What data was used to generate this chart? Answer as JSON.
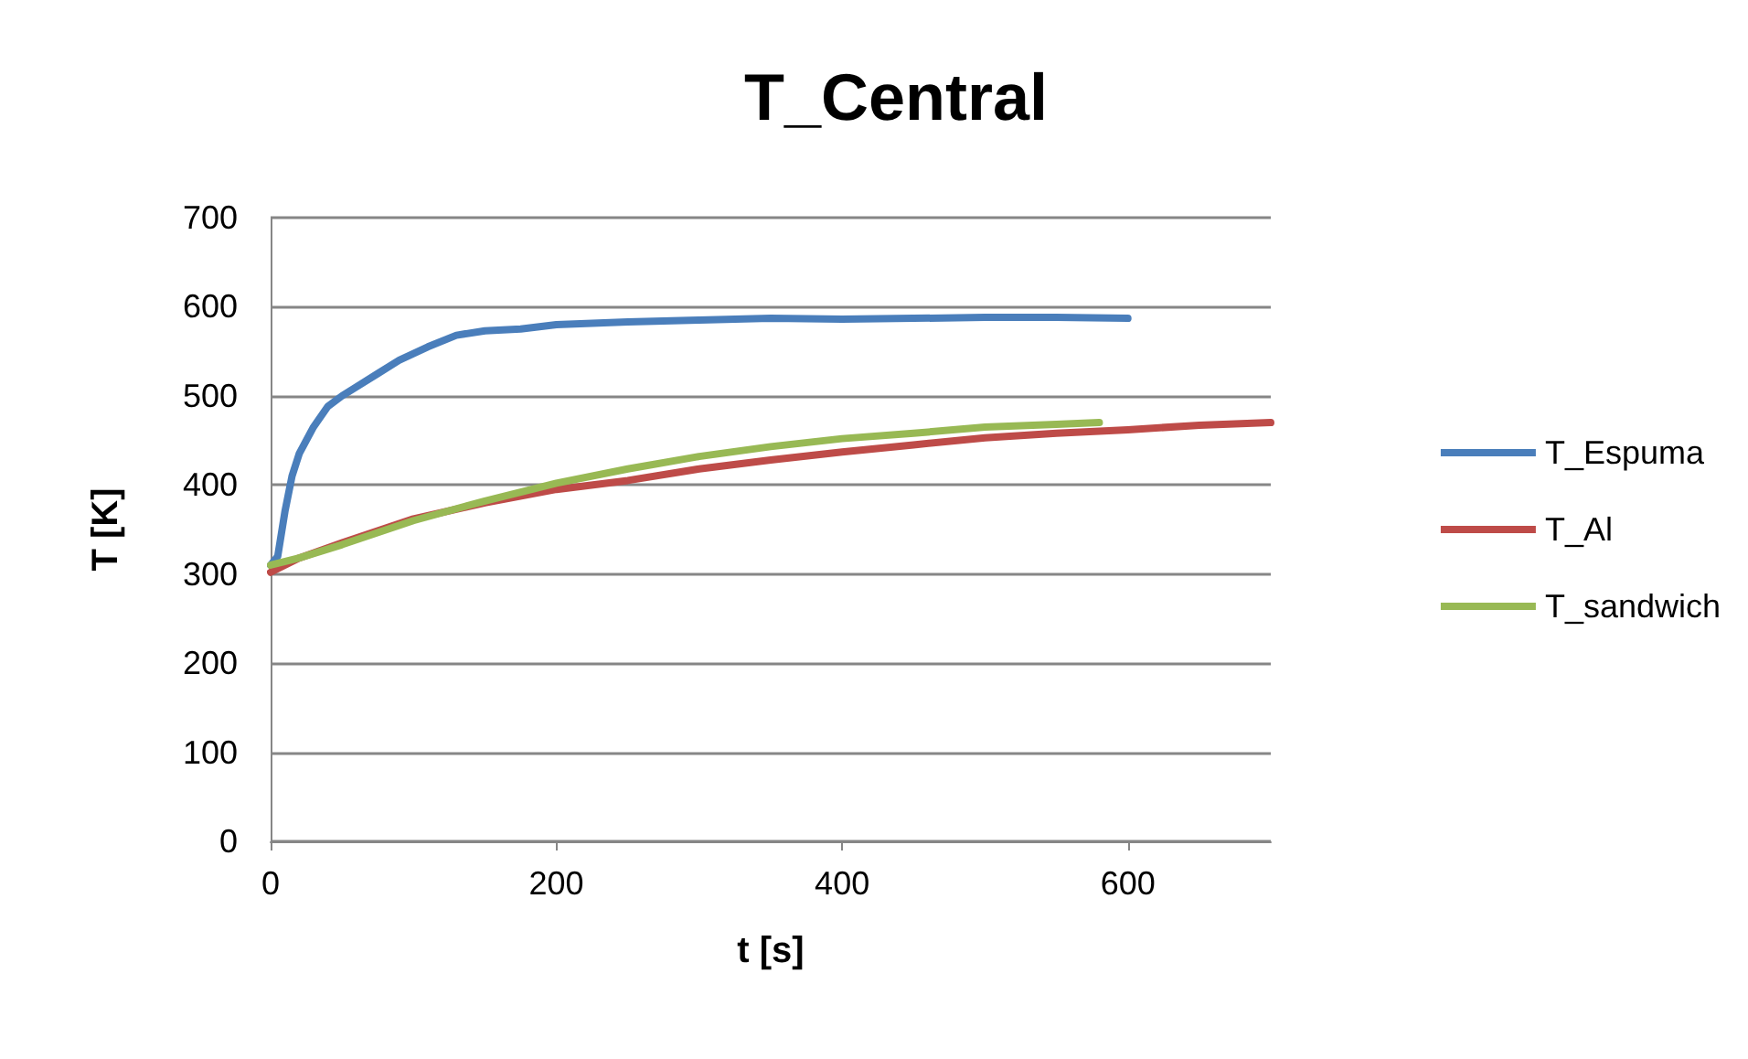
{
  "chart_data": {
    "type": "line",
    "title": "T_Central",
    "xlabel": "t [s]",
    "ylabel": "T [K]",
    "xlim": [
      0,
      700
    ],
    "xticks": [
      0,
      200,
      400,
      600
    ],
    "ylim": [
      0,
      700
    ],
    "yticks": [
      0,
      100,
      200,
      300,
      400,
      500,
      600,
      700
    ],
    "grid": "y",
    "legend": "right",
    "marker": "none",
    "line_style": "solid",
    "series": [
      {
        "name": "T_Espuma",
        "color": "#4a7ebb",
        "x": [
          0,
          5,
          10,
          15,
          20,
          30,
          40,
          50,
          60,
          75,
          90,
          110,
          130,
          150,
          175,
          200,
          250,
          300,
          350,
          400,
          450,
          500,
          550,
          600
        ],
        "values": [
          310,
          320,
          370,
          410,
          435,
          465,
          488,
          500,
          510,
          525,
          540,
          555,
          568,
          573,
          575,
          580,
          583,
          585,
          587,
          586,
          587,
          588,
          588,
          587
        ]
      },
      {
        "name": "T_Al",
        "color": "#be4b48",
        "x": [
          0,
          20,
          50,
          100,
          150,
          200,
          250,
          300,
          350,
          400,
          450,
          500,
          550,
          600,
          650,
          700
        ],
        "values": [
          302,
          318,
          335,
          362,
          380,
          395,
          405,
          418,
          428,
          437,
          445,
          453,
          458,
          462,
          467,
          470
        ]
      },
      {
        "name": "T_sandwich",
        "color": "#98b954",
        "x": [
          0,
          20,
          50,
          100,
          150,
          200,
          250,
          300,
          350,
          400,
          450,
          500,
          550,
          580
        ],
        "values": [
          310,
          318,
          333,
          360,
          382,
          402,
          418,
          432,
          443,
          452,
          458,
          465,
          468,
          470
        ]
      }
    ]
  }
}
